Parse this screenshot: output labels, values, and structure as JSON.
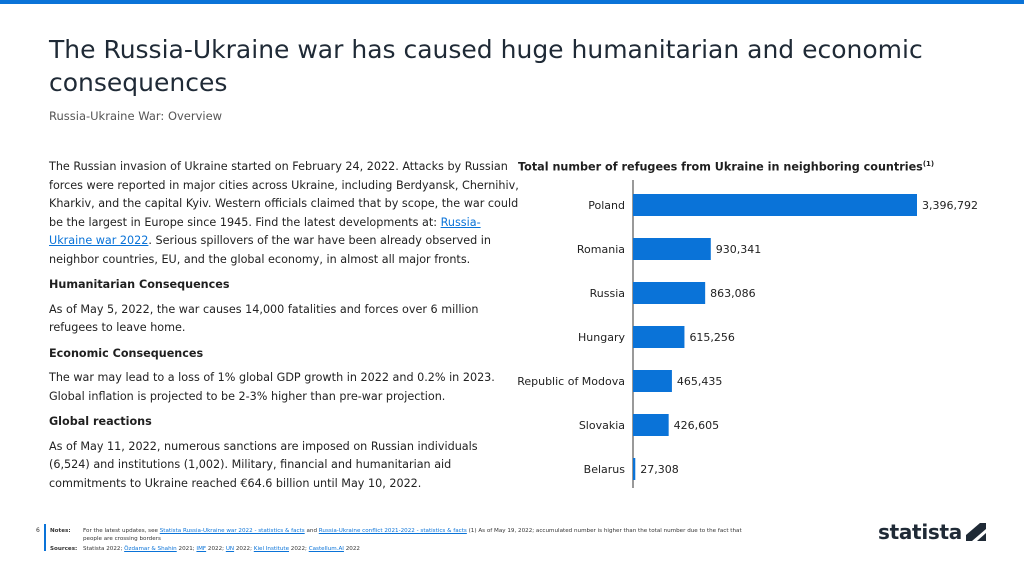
{
  "header": {
    "title": "The Russia-Ukraine war has caused huge humanitarian and economic consequences",
    "subtitle": "Russia-Ukraine War: Overview"
  },
  "body": {
    "intro_before_link": "The Russian invasion of Ukraine started on February 24, 2022. Attacks by Russian forces were reported in major cities across Ukraine, including Berdyansk, Chernihiv, Kharkiv, and the capital Kyiv. Western officials claimed that by scope, the war could be the largest in Europe since 1945. Find the latest developments at: ",
    "intro_link": "Russia-Ukraine war 2022",
    "intro_after_link": ". Serious spillovers of the war have been already observed in neighbor countries, EU, and the global economy, in almost all major fronts.",
    "sections": [
      {
        "heading": "Humanitarian Consequences",
        "text": "As of May 5, 2022, the war causes 14,000 fatalities and forces over 6 million refugees to leave home."
      },
      {
        "heading": "Economic Consequences",
        "text": "The war may lead to a loss of 1% global GDP growth in 2022 and 0.2% in 2023. Global inflation is projected to be 2-3% higher than pre-war projection."
      },
      {
        "heading": "Global reactions",
        "text": "As of May 11, 2022, numerous sanctions are imposed on Russian individuals (6,524) and institutions (1,002). Military, financial and humanitarian aid commitments to Ukraine reached €64.6 billion until May 10, 2022."
      }
    ]
  },
  "chart_data": {
    "type": "bar",
    "orientation": "horizontal",
    "title": "Total number of refugees from Ukraine in neighboring countries",
    "title_note": "(1)",
    "categories": [
      "Poland",
      "Romania",
      "Russia",
      "Hungary",
      "Republic of Modova",
      "Slovakia",
      "Belarus"
    ],
    "values": [
      3396792,
      930341,
      863086,
      615256,
      465435,
      426605,
      27308
    ],
    "value_labels": [
      "3,396,792",
      "930,341",
      "863,086",
      "615,256",
      "465,435",
      "426,605",
      "27,308"
    ],
    "bar_color": "#0a73d8",
    "xlim": [
      0,
      3396792
    ]
  },
  "footer": {
    "page_number": "6",
    "notes_label": "Notes:",
    "notes_pre": "For the latest updates, see ",
    "notes_link1": "Statista Russia-Ukraine war 2022 - statistics & facts",
    "notes_mid": " and ",
    "notes_link2": "Russia-Ukraine conflict 2021-2022 - statistics & facts",
    "notes_post": " (1) As of May 19, 2022; accumulated number is higher than the total number due to the fact that people are crossing borders",
    "sources_label": "Sources:",
    "sources_pre": "Statista 2022; ",
    "sources_link1": "Özdamar & Shahin",
    "sources_t1": " 2021; ",
    "sources_link2": "IMF",
    "sources_t2": " 2022; ",
    "sources_link3": "UN",
    "sources_t3": " 2022; ",
    "sources_link4": "Kiel Institute",
    "sources_t4": " 2022; ",
    "sources_link5": "Castellum.AI",
    "sources_t5": " 2022"
  },
  "logo": {
    "text": "statista"
  }
}
